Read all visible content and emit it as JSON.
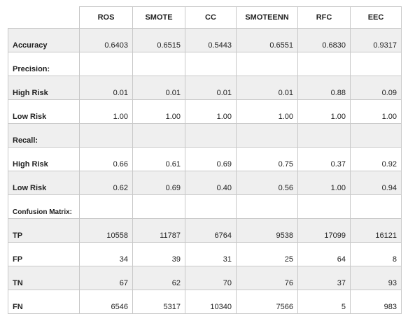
{
  "columns": [
    "ROS",
    "SMOTE",
    "CC",
    "SMOTEENN",
    "RFC",
    "EEC"
  ],
  "rows": [
    {
      "label": "Accuracy",
      "values": [
        "0.6403",
        "0.6515",
        "0.5443",
        "0.6551",
        "0.6830",
        "0.9317"
      ],
      "shaded": true,
      "section": false
    },
    {
      "label": "Precision:",
      "values": [
        "",
        "",
        "",
        "",
        "",
        ""
      ],
      "shaded": false,
      "section": true
    },
    {
      "label": "High Risk",
      "values": [
        "0.01",
        "0.01",
        "0.01",
        "0.01",
        "0.88",
        "0.09"
      ],
      "shaded": true,
      "section": false
    },
    {
      "label": "Low Risk",
      "values": [
        "1.00",
        "1.00",
        "1.00",
        "1.00",
        "1.00",
        "1.00"
      ],
      "shaded": false,
      "section": false
    },
    {
      "label": "Recall:",
      "values": [
        "",
        "",
        "",
        "",
        "",
        ""
      ],
      "shaded": true,
      "section": true
    },
    {
      "label": "High Risk",
      "values": [
        "0.66",
        "0.61",
        "0.69",
        "0.75",
        "0.37",
        "0.92"
      ],
      "shaded": false,
      "section": false
    },
    {
      "label": "Low Risk",
      "values": [
        "0.62",
        "0.69",
        "0.40",
        "0.56",
        "1.00",
        "0.94"
      ],
      "shaded": true,
      "section": false
    },
    {
      "label": "Confusion Matrix:",
      "values": [
        "",
        "",
        "",
        "",
        "",
        ""
      ],
      "shaded": false,
      "section": true
    },
    {
      "label": "TP",
      "values": [
        "10558",
        "11787",
        "6764",
        "9538",
        "17099",
        "16121"
      ],
      "shaded": true,
      "section": false
    },
    {
      "label": "FP",
      "values": [
        "34",
        "39",
        "31",
        "25",
        "64",
        "8"
      ],
      "shaded": false,
      "section": false
    },
    {
      "label": "TN",
      "values": [
        "67",
        "62",
        "70",
        "76",
        "37",
        "93"
      ],
      "shaded": true,
      "section": false
    },
    {
      "label": "FN",
      "values": [
        "6546",
        "5317",
        "10340",
        "7566",
        "5",
        "983"
      ],
      "shaded": false,
      "section": false
    }
  ]
}
